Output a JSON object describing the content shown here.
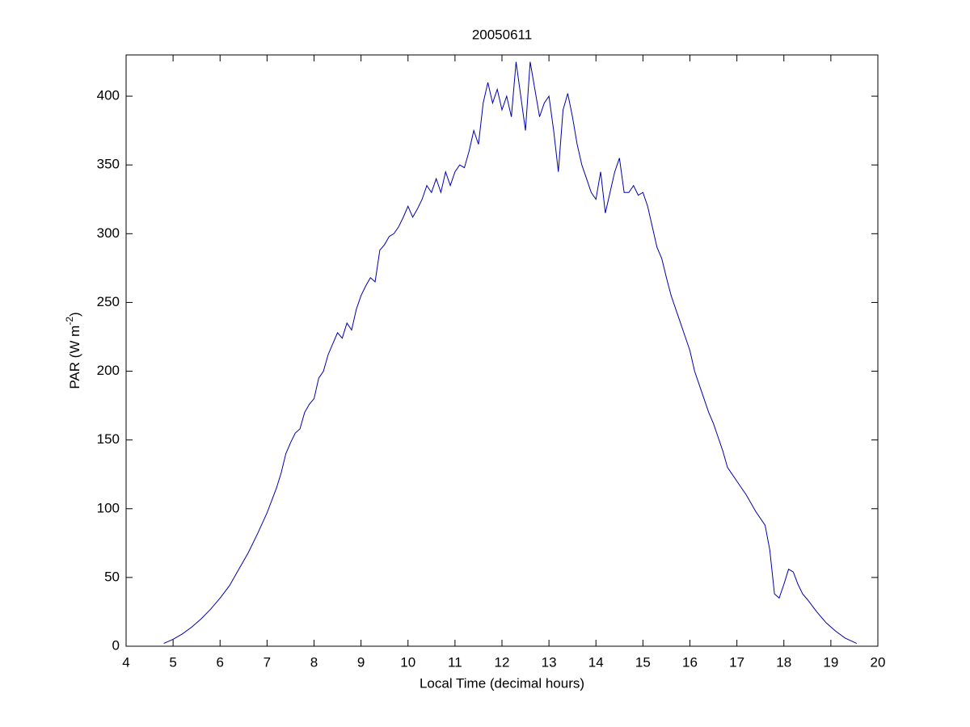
{
  "chart_data": {
    "type": "line",
    "title": "20050611",
    "xlabel": "Local Time (decimal hours)",
    "ylabel": {
      "text": "PAR (W m",
      "superscript": "-2",
      "suffix": ")"
    },
    "xlim": [
      4,
      20
    ],
    "xticks": [
      4,
      5,
      6,
      7,
      8,
      9,
      10,
      11,
      12,
      13,
      14,
      15,
      16,
      17,
      18,
      19,
      20
    ],
    "ylim": [
      0,
      430
    ],
    "yticks": [
      0,
      50,
      100,
      150,
      200,
      250,
      300,
      350,
      400
    ],
    "grid": false,
    "series": [
      {
        "color": "#0000aa",
        "x": [
          4.8,
          5.0,
          5.2,
          5.4,
          5.6,
          5.8,
          6.0,
          6.2,
          6.4,
          6.6,
          6.8,
          7.0,
          7.2,
          7.3,
          7.4,
          7.5,
          7.6,
          7.7,
          7.8,
          7.9,
          8.0,
          8.1,
          8.2,
          8.3,
          8.4,
          8.5,
          8.6,
          8.7,
          8.8,
          8.9,
          9.0,
          9.1,
          9.2,
          9.3,
          9.4,
          9.5,
          9.6,
          9.7,
          9.8,
          9.9,
          10.0,
          10.1,
          10.2,
          10.3,
          10.4,
          10.5,
          10.6,
          10.7,
          10.8,
          10.9,
          11.0,
          11.1,
          11.2,
          11.3,
          11.4,
          11.5,
          11.6,
          11.7,
          11.8,
          11.9,
          12.0,
          12.1,
          12.2,
          12.3,
          12.4,
          12.5,
          12.6,
          12.7,
          12.8,
          12.9,
          13.0,
          13.1,
          13.2,
          13.3,
          13.4,
          13.5,
          13.6,
          13.7,
          13.8,
          13.9,
          14.0,
          14.1,
          14.2,
          14.3,
          14.4,
          14.5,
          14.6,
          14.7,
          14.8,
          14.9,
          15.0,
          15.1,
          15.2,
          15.3,
          15.4,
          15.5,
          15.6,
          15.7,
          15.8,
          15.9,
          16.0,
          16.1,
          16.2,
          16.3,
          16.4,
          16.5,
          16.6,
          16.7,
          16.8,
          16.9,
          17.0,
          17.2,
          17.4,
          17.6,
          17.7,
          17.8,
          17.9,
          18.0,
          18.1,
          18.2,
          18.3,
          18.4,
          18.5,
          18.7,
          18.9,
          19.1,
          19.3,
          19.55
        ],
        "values": [
          2,
          5,
          9,
          14,
          20,
          27,
          35,
          44,
          56,
          68,
          82,
          97,
          115,
          126,
          140,
          148,
          155,
          158,
          170,
          176,
          180,
          195,
          200,
          212,
          220,
          228,
          224,
          235,
          230,
          245,
          255,
          262,
          268,
          265,
          288,
          292,
          298,
          300,
          305,
          312,
          320,
          312,
          318,
          325,
          335,
          330,
          340,
          330,
          345,
          335,
          345,
          350,
          348,
          360,
          375,
          365,
          395,
          410,
          395,
          405,
          390,
          400,
          385,
          425,
          400,
          375,
          425,
          405,
          385,
          395,
          400,
          375,
          345,
          390,
          402,
          385,
          365,
          350,
          340,
          330,
          325,
          345,
          315,
          330,
          345,
          355,
          330,
          330,
          335,
          328,
          330,
          320,
          305,
          290,
          282,
          268,
          255,
          245,
          235,
          225,
          215,
          200,
          190,
          180,
          170,
          162,
          152,
          142,
          130,
          125,
          120,
          110,
          98,
          88,
          70,
          38,
          35,
          45,
          56,
          54,
          45,
          38,
          34,
          25,
          17,
          11,
          6,
          2
        ]
      }
    ]
  }
}
